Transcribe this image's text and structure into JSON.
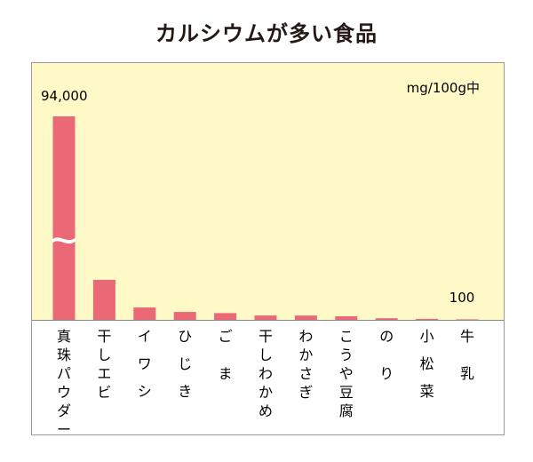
{
  "title": "カルシウムが多い食品",
  "chart_data": {
    "type": "bar",
    "unit": "mg/100g中",
    "categories": [
      "真珠パウダー",
      "干しエビ",
      "イワシ",
      "ひじき",
      "ごま",
      "干しわかめ",
      "わかさぎ",
      "こうや豆腐",
      "のり",
      "小松菜",
      "牛乳"
    ],
    "values": [
      94000,
      7100,
      2200,
      1400,
      1200,
      780,
      750,
      630,
      280,
      170,
      100
    ],
    "value_labels": [
      "94,000",
      "",
      "",
      "",
      "",
      "",
      "",
      "",
      "",
      "",
      "100"
    ],
    "axis_break": true,
    "colors": {
      "bar": "#eb6877",
      "plot_bg": "#fff9c7"
    }
  }
}
